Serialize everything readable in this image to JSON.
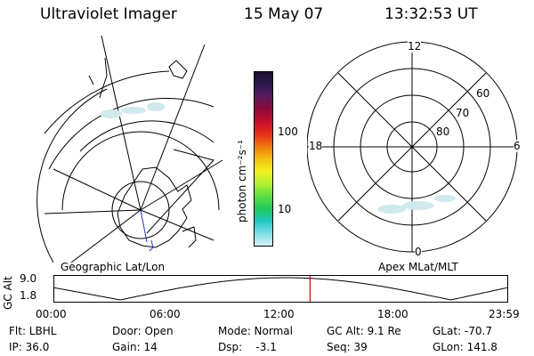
{
  "header": {
    "title": "Ultraviolet Imager",
    "date": "15 May 07",
    "time": "13:32:53 UT"
  },
  "colorbar": {
    "unit_label": "photon cm⁻²s⁻¹",
    "ticks": [
      "100",
      "10"
    ],
    "colors": [
      "#1a1030",
      "#2b1a4e",
      "#5a1a5e",
      "#8a0a3a",
      "#c8102c",
      "#e8301a",
      "#f07a10",
      "#f5c010",
      "#f0f020",
      "#b8f030",
      "#60e040",
      "#20c860",
      "#20c8c0",
      "#80e0e8",
      "#d8f0f4"
    ]
  },
  "left_map": {
    "label": "Geographic Lat/Lon"
  },
  "right_map": {
    "label": "Apex MLat/MLT",
    "mlt_labels": {
      "top": "12",
      "left": "18",
      "right": "6",
      "bottom": "0"
    },
    "lat_labels": [
      "60",
      "70",
      "80"
    ]
  },
  "altitude_plot": {
    "ylabel": "GC Alt",
    "yticks": [
      "9.0",
      "1.8"
    ],
    "xticks": [
      "00:00",
      "06:00",
      "12:00",
      "18:00",
      "23:59"
    ],
    "current_time_hours": 13.55,
    "curve_color": "#000000",
    "marker_color": "#cc0000"
  },
  "info": {
    "flt": "Flt: LBHL",
    "ip": "IP: 36.0",
    "door": "Door: Open",
    "gain": "Gain: 14",
    "mode": "Mode: Normal",
    "dsp": "Dsp:    -3.1",
    "gcalt": "GC Alt: 9.1 Re",
    "seq": "Seq: 39",
    "glat": "GLat: -70.7",
    "glon": "GLon: 141.8"
  }
}
